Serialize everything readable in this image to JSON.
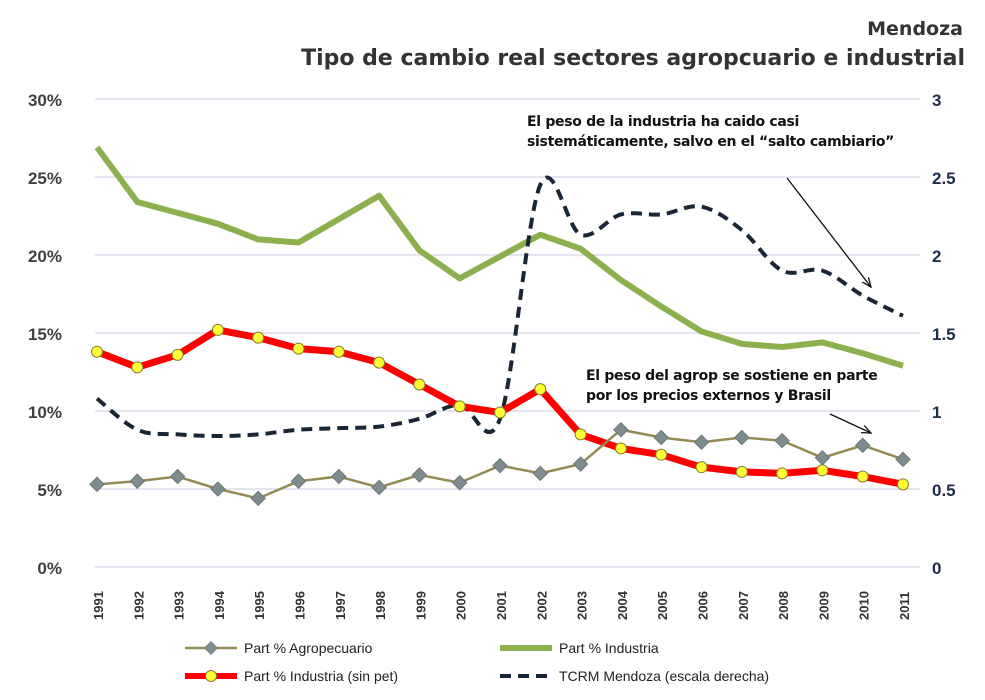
{
  "chart_data": {
    "type": "line",
    "title": "Mendoza",
    "subtitle": "Tipo de cambio real sectores agropcuario e industrial",
    "categories": [
      "1991",
      "1992",
      "1993",
      "1994",
      "1995",
      "1996",
      "1997",
      "1998",
      "1999",
      "2000",
      "2001",
      "2002",
      "2003",
      "2004",
      "2005",
      "2006",
      "2007",
      "2008",
      "2009",
      "2010",
      "2011"
    ],
    "y_left": {
      "ticks": [
        "0%",
        "5%",
        "10%",
        "15%",
        "20%",
        "25%",
        "30%"
      ],
      "range": [
        0,
        30
      ]
    },
    "y_right": {
      "ticks": [
        "0",
        "0.5",
        "1",
        "1.5",
        "2",
        "2.5",
        "3"
      ],
      "range": [
        0,
        3
      ]
    },
    "grid": true,
    "legend_position": "bottom",
    "series": [
      {
        "name": "Part % Agropecuario",
        "axis": "left",
        "color": "#948a54",
        "marker": "diamond",
        "values": [
          5.3,
          5.5,
          5.8,
          5.0,
          4.4,
          5.5,
          5.8,
          5.1,
          5.9,
          5.4,
          6.5,
          6.0,
          6.6,
          8.8,
          8.3,
          8.0,
          8.3,
          8.1,
          7.0,
          7.8,
          6.9
        ]
      },
      {
        "name": "Part % Industria",
        "axis": "left",
        "color": "#8db04f",
        "values": [
          26.9,
          23.4,
          22.7,
          22.0,
          21.0,
          20.8,
          22.3,
          23.8,
          20.3,
          18.5,
          19.9,
          21.3,
          20.4,
          18.4,
          16.7,
          15.1,
          14.3,
          14.1,
          14.4,
          13.7,
          12.9
        ]
      },
      {
        "name": "Part % Industria (sin pet)",
        "axis": "left",
        "color": "#ff0000",
        "marker": "circle-yellow",
        "values": [
          13.8,
          12.8,
          13.6,
          15.2,
          14.7,
          14.0,
          13.8,
          13.1,
          11.7,
          10.3,
          9.9,
          11.4,
          8.5,
          7.6,
          7.2,
          6.4,
          6.1,
          6.0,
          6.2,
          5.8,
          5.3
        ]
      },
      {
        "name": "TCRM Mendoza (escala derecha)",
        "axis": "right",
        "color": "#1a2535",
        "dash": true,
        "values": [
          1.08,
          0.88,
          0.85,
          0.84,
          0.85,
          0.88,
          0.89,
          0.9,
          0.95,
          1.04,
          0.95,
          2.45,
          2.13,
          2.26,
          2.26,
          2.31,
          2.16,
          1.9,
          1.9,
          1.74,
          1.61
        ]
      }
    ],
    "annotations": [
      {
        "text_lines": [
          "El peso de la industria ha caido casi",
          "sistemáticamente, salvo en el “salto cambiario”"
        ]
      },
      {
        "text_lines": [
          "El peso del agrop se sostiene en parte",
          "por los precios externos y Brasil"
        ]
      }
    ]
  }
}
